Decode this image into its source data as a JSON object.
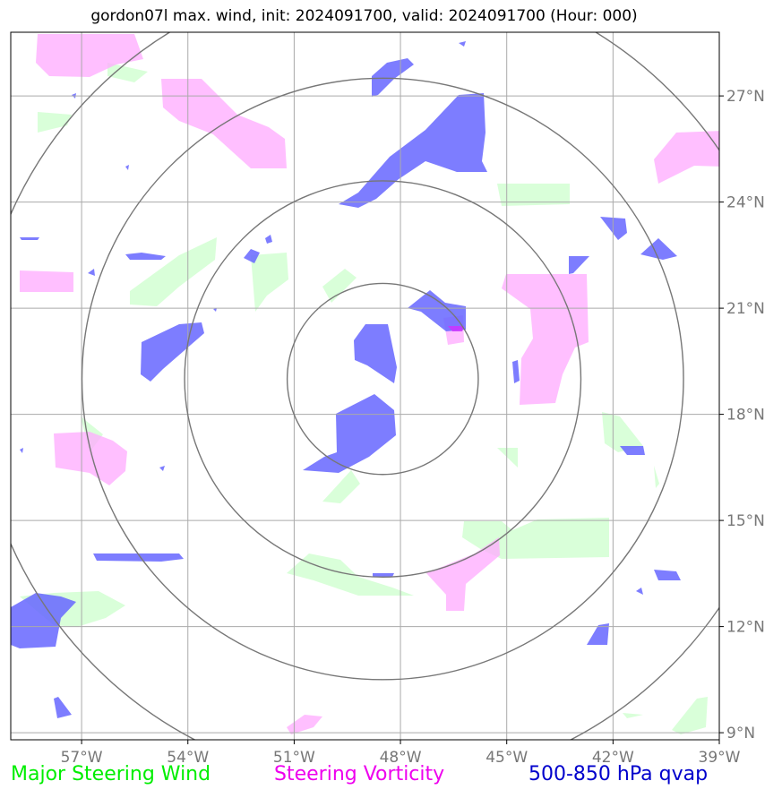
{
  "title": "gordon07l max. wind, init: 2024091700, valid: 2024091700 (Hour: 000)",
  "map": {
    "lon_range": [
      -59,
      -39
    ],
    "lat_range": [
      8.8,
      28.8
    ],
    "center": {
      "lon": -48.5,
      "lat": 19.0
    },
    "lon_ticks": [
      {
        "value": -57,
        "label": "57°W"
      },
      {
        "value": -54,
        "label": "54°W"
      },
      {
        "value": -51,
        "label": "51°W"
      },
      {
        "value": -48,
        "label": "48°W"
      },
      {
        "value": -45,
        "label": "45°W"
      },
      {
        "value": -42,
        "label": "42°W"
      },
      {
        "value": -39,
        "label": "39°W"
      }
    ],
    "lat_ticks": [
      {
        "value": 27,
        "label": "27°N"
      },
      {
        "value": 24,
        "label": "24°N"
      },
      {
        "value": 21,
        "label": "21°N"
      },
      {
        "value": 18,
        "label": "18°N"
      },
      {
        "value": 15,
        "label": "15°N"
      },
      {
        "value": 12,
        "label": "12°N"
      },
      {
        "value": 9,
        "label": "9°N"
      }
    ],
    "colors": {
      "steering_wind": "#ccffcc",
      "steering_vorticity": "#ffaaff",
      "qvap": "#6666ff",
      "grid": "#aaaaaa",
      "rings": "#777777",
      "tick_label": "#777777"
    }
  },
  "legend": {
    "steering_wind": "Major Steering Wind",
    "steering_vorticity": "Steering Vorticity",
    "qvap": "500-850 hPa qvap"
  }
}
